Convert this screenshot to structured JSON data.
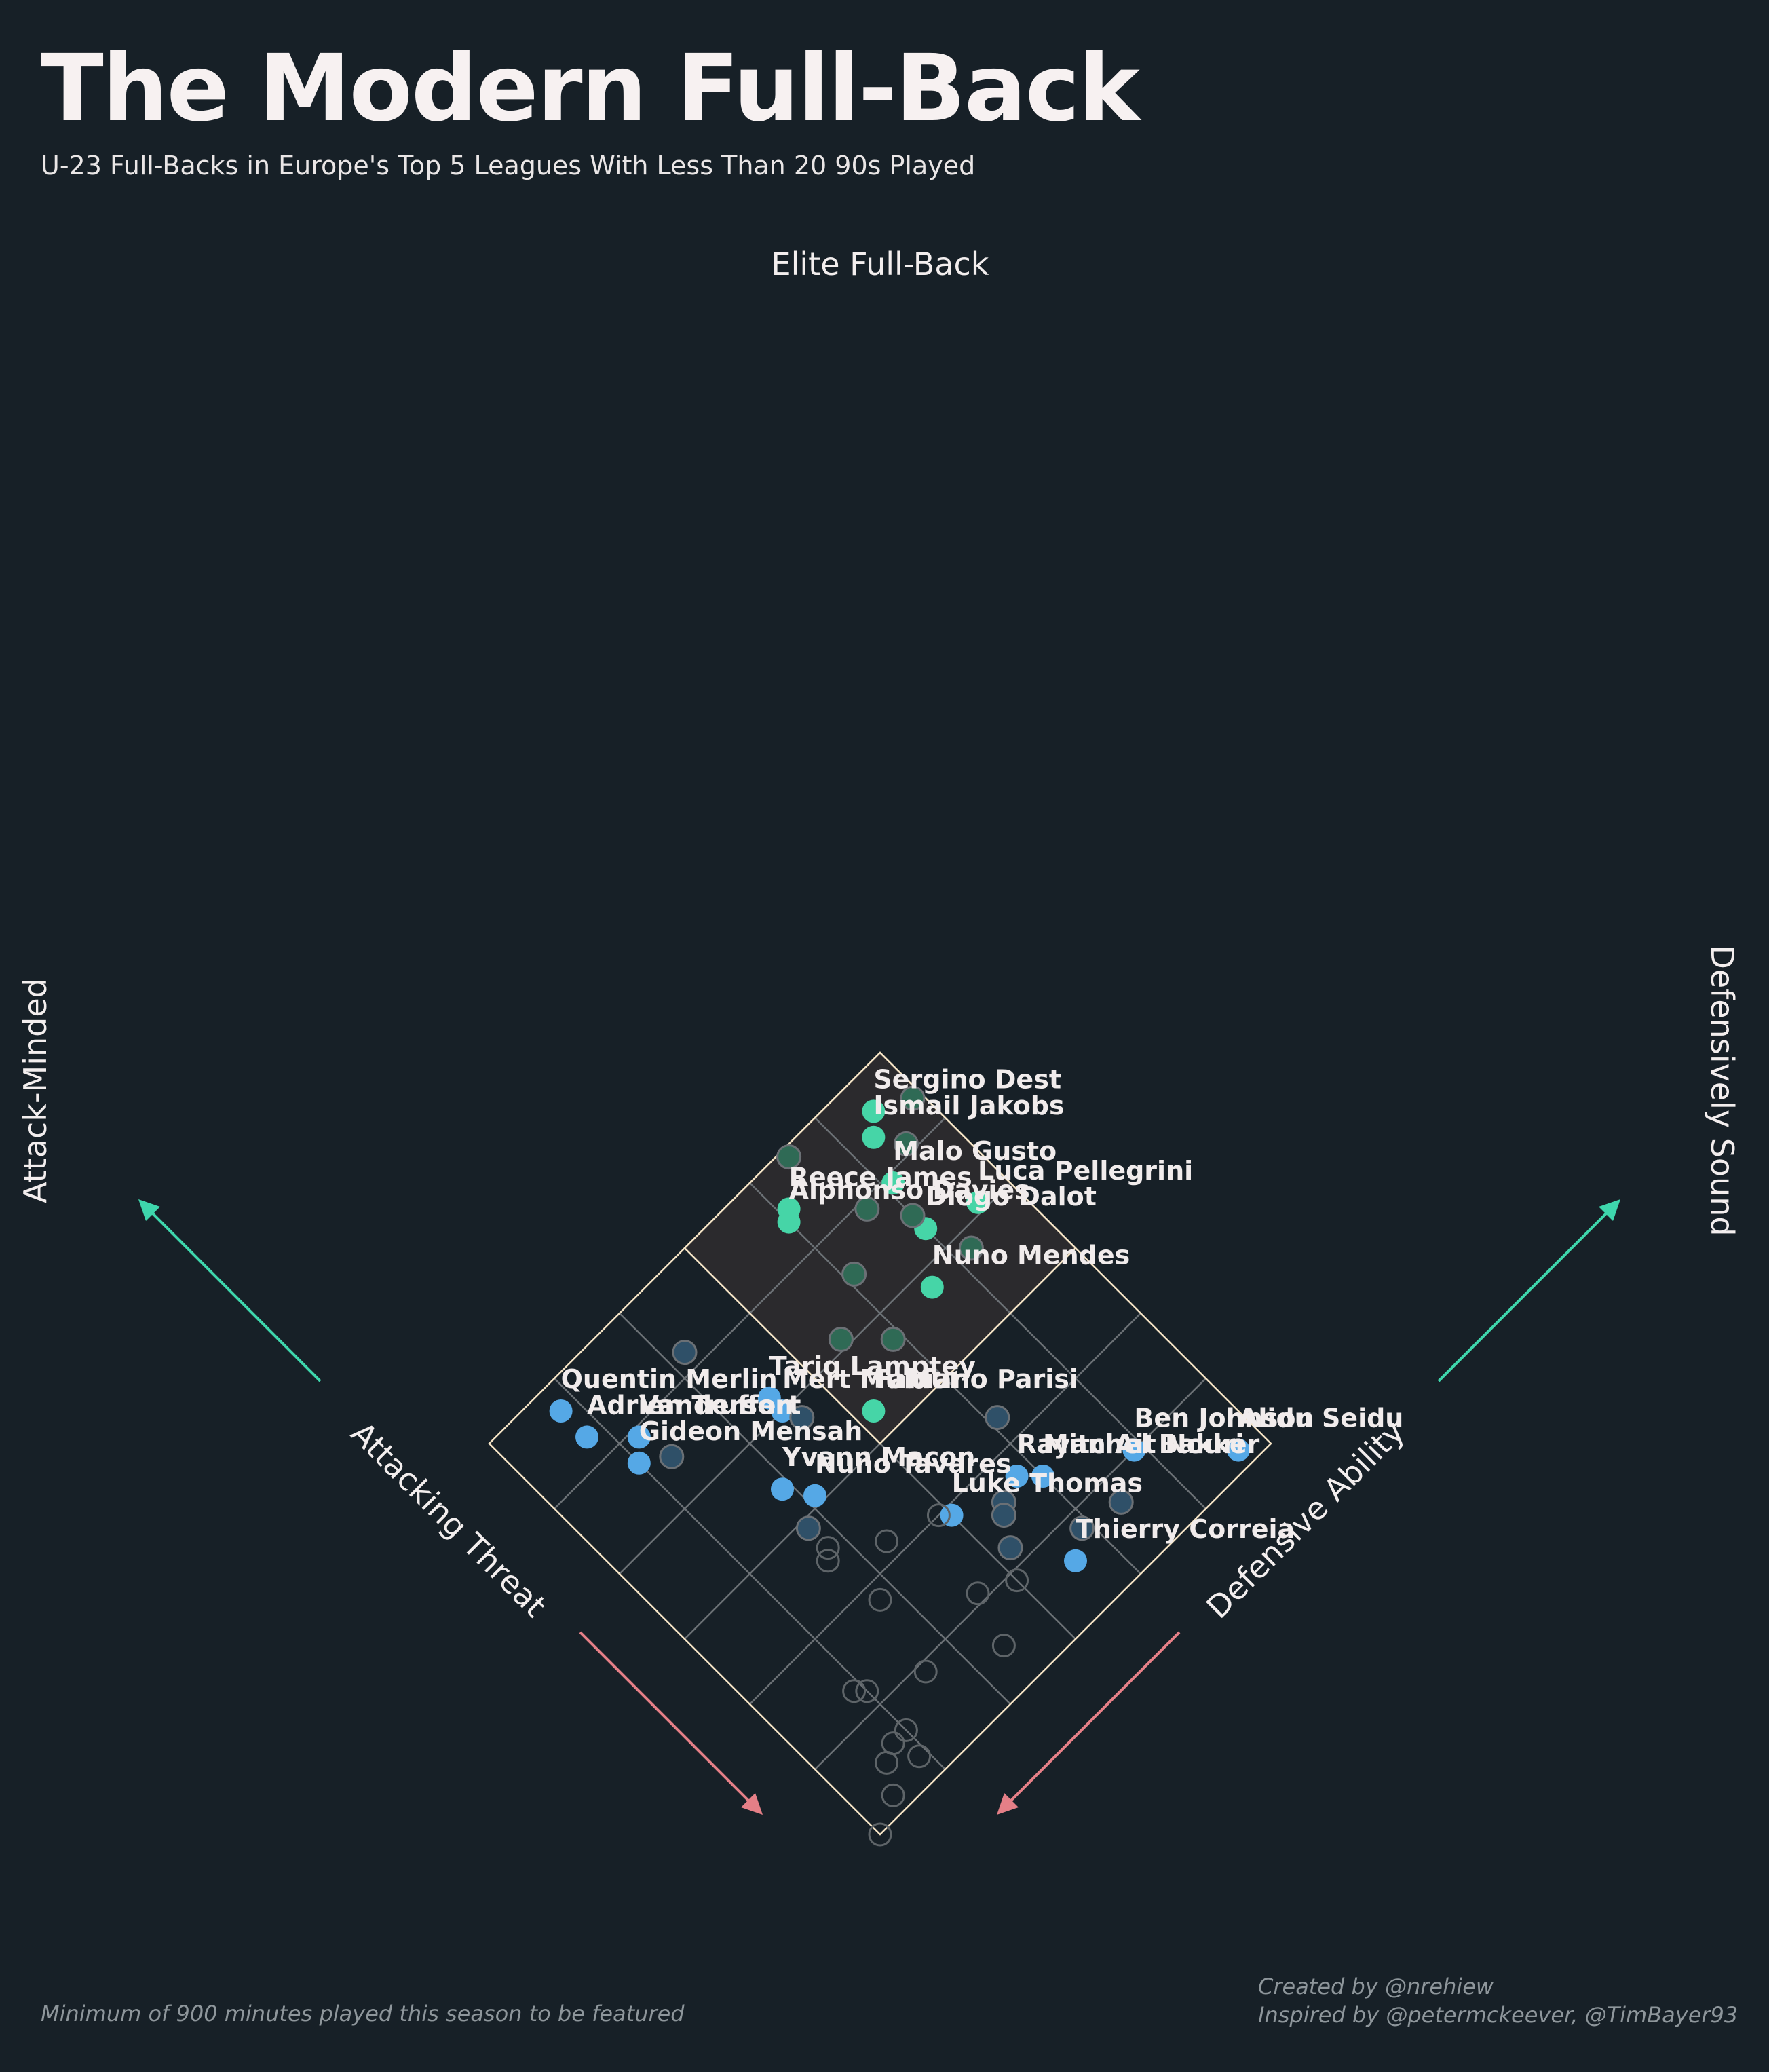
{
  "header": {
    "title": "The Modern Full-Back",
    "subtitle": "U-23 Full-Backs in Europe's Top 5 Leagues With Less Than 20 90s Played"
  },
  "footer": {
    "note": "Minimum of 900 minutes played this season to be featured",
    "credit_line1": "Created by @nrehiew",
    "credit_line2": "Inspired by @petermckeever, @TimBayer93"
  },
  "colors": {
    "background": "#172027",
    "frame": "#f3e2c4",
    "grid": "#6b7075",
    "elite_region": "#2b2a2d",
    "elite_point": "#46d5a7",
    "labelled_point": "#55a8e6",
    "minor_point": "#2f5068",
    "other_point_outline": "#5e6468",
    "arrow_up": "#3ed6ac",
    "arrow_down": "#e57f87"
  },
  "chart_data": {
    "type": "scatter",
    "title": "The Modern Full-Back",
    "subtitle": "U-23 Full-Backs in Europe's Top 5 Leagues With Less Than 20 90s Played",
    "corner_labels": {
      "top": "Elite Full-Back",
      "left": "Attack-Minded",
      "right": "Defensively Sound"
    },
    "xlabel": "Attacking Threat",
    "ylabel": "Defensive Ability",
    "xlim": [
      0,
      6
    ],
    "ylim": [
      0,
      6
    ],
    "grid": true,
    "highlight_region": {
      "name": "Elite Full-Back",
      "x": [
        3,
        6
      ],
      "y": [
        3,
        6
      ]
    },
    "series": [
      {
        "group": "elite",
        "points": [
          {
            "label": "Sergino Dest",
            "x": 5.6,
            "y": 5.5
          },
          {
            "label": "Ismail Jakobs",
            "x": 5.4,
            "y": 5.3
          },
          {
            "label": "Malo Gusto",
            "x": 4.9,
            "y": 5.1
          },
          {
            "label": "Reece James",
            "x": 5.5,
            "y": 4.1
          },
          {
            "label": "Alphonso Davies",
            "x": 5.4,
            "y": 4.0
          },
          {
            "label": "Luca Pellegrini",
            "x": 4.1,
            "y": 5.6
          },
          {
            "label": "Diogo Dalot",
            "x": 4.3,
            "y": 5.0
          },
          {
            "label": "Nuno Mendes",
            "x": 3.8,
            "y": 4.6
          },
          {
            "label": "Fabiano Parisi",
            "x": 3.3,
            "y": 3.2
          },
          {
            "label": "",
            "x": 5.4,
            "y": 5.9
          },
          {
            "label": "",
            "x": 5.1,
            "y": 5.5
          },
          {
            "label": "",
            "x": 5.9,
            "y": 4.5
          },
          {
            "label": "",
            "x": 4.9,
            "y": 4.7
          },
          {
            "label": "",
            "x": 4.5,
            "y": 5.0
          },
          {
            "label": "",
            "x": 4.5,
            "y": 4.1
          },
          {
            "label": "",
            "x": 3.8,
            "y": 5.2
          },
          {
            "label": "",
            "x": 3.7,
            "y": 3.9
          },
          {
            "label": "",
            "x": 4.1,
            "y": 3.5
          }
        ]
      },
      {
        "group": "labelled",
        "points": [
          {
            "label": "Tariq Lamptey",
            "x": 4.2,
            "y": 2.5
          },
          {
            "label": "Mert Muldur",
            "x": 4.0,
            "y": 2.5
          },
          {
            "label": "Quentin Merlin",
            "x": 5.7,
            "y": 0.8
          },
          {
            "label": "Adrien Truffert",
            "x": 5.3,
            "y": 0.8
          },
          {
            "label": "Vanderson",
            "x": 4.9,
            "y": 1.2
          },
          {
            "label": "Gideon Mensah",
            "x": 4.7,
            "y": 1.0
          },
          {
            "label": "Yvann Macon",
            "x": 3.4,
            "y": 1.9
          },
          {
            "label": "Nuno Tavares",
            "x": 3.1,
            "y": 2.1
          },
          {
            "label": "Mitchel Bakker",
            "x": 1.5,
            "y": 4.0
          },
          {
            "label": "Rayan Ait Nouri",
            "x": 1.7,
            "y": 3.8
          },
          {
            "label": "Alidu Seidu",
            "x": 0.2,
            "y": 5.7
          },
          {
            "label": "Ben Johnson",
            "x": 1.0,
            "y": 4.9
          },
          {
            "label": "Luke Thomas",
            "x": 1.9,
            "y": 3.0
          },
          {
            "label": "Thierry Correia",
            "x": 0.6,
            "y": 3.6
          }
        ]
      },
      {
        "group": "minor",
        "points": [
          {
            "x": 2.3,
            "y": 4.1
          },
          {
            "x": 4.5,
            "y": 1.3
          },
          {
            "x": 3.8,
            "y": 2.6
          },
          {
            "x": 5.2,
            "y": 2.2
          },
          {
            "x": 1.6,
            "y": 3.5
          },
          {
            "x": 1.5,
            "y": 3.4
          },
          {
            "x": 0.7,
            "y": 4.4
          },
          {
            "x": 1.2,
            "y": 3.2
          },
          {
            "x": 0.8,
            "y": 3.9
          },
          {
            "x": 2.9,
            "y": 1.8
          }
        ]
      },
      {
        "group": "other",
        "points": [
          {
            "x": 2.0,
            "y": 2.9
          },
          {
            "x": 2.2,
            "y": 2.3
          },
          {
            "x": 2.6,
            "y": 1.8
          },
          {
            "x": 2.5,
            "y": 1.7
          },
          {
            "x": 1.8,
            "y": 1.8
          },
          {
            "x": 0.9,
            "y": 3.0
          },
          {
            "x": 1.1,
            "y": 2.6
          },
          {
            "x": 1.3,
            "y": 0.9
          },
          {
            "x": 1.2,
            "y": 1.0
          },
          {
            "x": 0.9,
            "y": 1.6
          },
          {
            "x": 0.6,
            "y": 1.0
          },
          {
            "x": 0.6,
            "y": 0.8
          },
          {
            "x": 0.5,
            "y": 0.6
          },
          {
            "x": 0.5,
            "y": 2.4
          },
          {
            "x": 0.3,
            "y": 0.9
          },
          {
            "x": 0.2,
            "y": 0.4
          },
          {
            "x": 0.0,
            "y": 0.0
          }
        ]
      }
    ]
  }
}
